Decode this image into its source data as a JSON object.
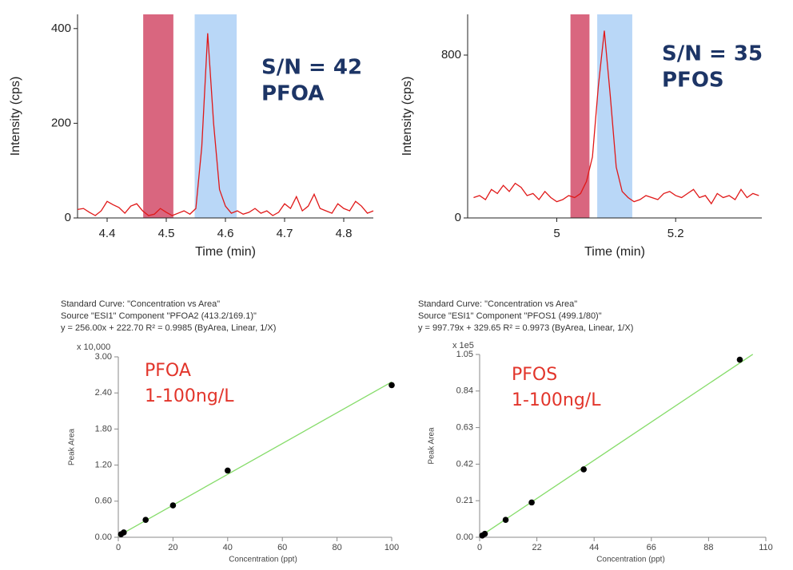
{
  "chart_data": [
    {
      "type": "line",
      "ylabel": "Intensity (cps)",
      "xlabel": "Time (min)",
      "annotations": [
        "S/N = 42",
        "PFOA"
      ],
      "x": [
        4.35,
        4.36,
        4.37,
        4.38,
        4.39,
        4.4,
        4.41,
        4.42,
        4.43,
        4.44,
        4.45,
        4.46,
        4.47,
        4.48,
        4.49,
        4.5,
        4.51,
        4.52,
        4.53,
        4.54,
        4.55,
        4.56,
        4.57,
        4.58,
        4.59,
        4.6,
        4.61,
        4.62,
        4.63,
        4.64,
        4.65,
        4.66,
        4.67,
        4.68,
        4.69,
        4.7,
        4.71,
        4.72,
        4.73,
        4.74,
        4.75,
        4.76,
        4.77,
        4.78,
        4.79,
        4.8,
        4.81,
        4.82,
        4.83,
        4.84,
        4.85
      ],
      "values": [
        18,
        20,
        12,
        5,
        15,
        35,
        28,
        22,
        10,
        25,
        30,
        15,
        5,
        8,
        20,
        12,
        5,
        10,
        15,
        8,
        20,
        150,
        390,
        200,
        60,
        25,
        10,
        15,
        8,
        12,
        20,
        10,
        15,
        5,
        12,
        30,
        20,
        45,
        15,
        25,
        50,
        20,
        15,
        10,
        30,
        20,
        15,
        35,
        25,
        10,
        15
      ],
      "color": "#e01818",
      "bands": [
        {
          "range": [
            4.461,
            4.512
          ],
          "color": "#d9667f"
        },
        {
          "range": [
            4.548,
            4.619
          ],
          "color": "#b9d7f7"
        }
      ],
      "xlim": [
        4.35,
        4.85
      ],
      "ylim": [
        0,
        430
      ],
      "xticks": [
        4.4,
        4.5,
        4.6,
        4.7,
        4.8
      ],
      "yticks": [
        0,
        200,
        400
      ]
    },
    {
      "type": "line",
      "ylabel": "Intensity (cps)",
      "xlabel": "Time (min)",
      "annotations": [
        "S/N = 35",
        "PFOS"
      ],
      "x": [
        4.86,
        4.87,
        4.88,
        4.89,
        4.9,
        4.91,
        4.92,
        4.93,
        4.94,
        4.95,
        4.96,
        4.97,
        4.98,
        4.99,
        5.0,
        5.01,
        5.02,
        5.03,
        5.04,
        5.05,
        5.06,
        5.07,
        5.08,
        5.09,
        5.1,
        5.11,
        5.12,
        5.13,
        5.14,
        5.15,
        5.16,
        5.17,
        5.18,
        5.19,
        5.2,
        5.21,
        5.22,
        5.23,
        5.24,
        5.25,
        5.26,
        5.27,
        5.28,
        5.29,
        5.3,
        5.31,
        5.32,
        5.33,
        5.34
      ],
      "values": [
        100,
        110,
        90,
        140,
        120,
        160,
        130,
        170,
        150,
        110,
        120,
        90,
        130,
        100,
        80,
        90,
        110,
        100,
        120,
        180,
        300,
        650,
        920,
        600,
        250,
        130,
        100,
        80,
        90,
        110,
        100,
        90,
        120,
        130,
        110,
        100,
        120,
        140,
        100,
        110,
        70,
        120,
        100,
        110,
        90,
        140,
        100,
        120,
        110
      ],
      "color": "#e01818",
      "bands": [
        {
          "range": [
            5.023,
            5.055
          ],
          "color": "#d9667f"
        },
        {
          "range": [
            5.068,
            5.127
          ],
          "color": "#b9d7f7"
        }
      ],
      "xlim": [
        4.85,
        5.345
      ],
      "ylim": [
        0,
        1000
      ],
      "xticks": [
        5,
        5.2
      ],
      "yticks": [
        0,
        800
      ]
    },
    {
      "type": "scatter",
      "header": [
        "Standard Curve: \"Concentration vs Area\"",
        "Source \"ESI1\" Component \"PFOA2 (413.2/169.1)\"",
        "y = 256.00x + 222.70    R² = 0.9985  (ByArea, Linear, 1/X)"
      ],
      "multiplier": "x 10,000",
      "ylabel": "Peak Area",
      "xlabel": "Concentration (ppt)",
      "annotations": [
        "PFOA",
        "1-100ng/L"
      ],
      "x": [
        1,
        2,
        10,
        20,
        40,
        100
      ],
      "values": [
        0.05,
        0.08,
        0.29,
        0.53,
        1.11,
        2.53
      ],
      "color": "#000000",
      "fit": {
        "x": [
          0,
          100
        ],
        "values": [
          0.022,
          2.583
        ],
        "color": "#86dc6a"
      },
      "xlim": [
        0,
        100
      ],
      "ylim": [
        0,
        3
      ],
      "xticks": [
        0,
        20,
        40,
        60,
        80,
        100
      ],
      "yticks": [
        {
          "value": 0,
          "label": "0.00"
        },
        {
          "value": 0.6,
          "label": "0.60"
        },
        {
          "value": 1.2,
          "label": "1.20"
        },
        {
          "value": 1.8,
          "label": "1.80"
        },
        {
          "value": 2.4,
          "label": "2.40"
        },
        {
          "value": 3,
          "label": "3.00"
        }
      ]
    },
    {
      "type": "scatter",
      "header": [
        "Standard Curve: \"Concentration vs Area\"",
        "Source \"ESI1\" Component \"PFOS1 (499.1/80)\"",
        "y = 997.79x + 329.65    R² = 0.9973  (ByArea, Linear, 1/X)"
      ],
      "multiplier": "x 1e5",
      "ylabel": "Peak Area",
      "xlabel": "Concentration (ppt)",
      "annotations": [
        "PFOS",
        "1-100ng/L"
      ],
      "x": [
        1,
        2,
        10,
        20,
        40,
        100
      ],
      "values": [
        0.01,
        0.02,
        0.1,
        0.2,
        0.39,
        1.02
      ],
      "color": "#000000",
      "fit": {
        "x": [
          0,
          105
        ],
        "values": [
          0.0033,
          1.051
        ],
        "color": "#86dc6a"
      },
      "xlim": [
        0,
        110
      ],
      "ylim": [
        0,
        1.05
      ],
      "xticks": [
        0,
        22,
        44,
        66,
        88,
        110
      ],
      "yticks": [
        {
          "value": 0,
          "label": "0.00"
        },
        {
          "value": 0.21,
          "label": "0.21"
        },
        {
          "value": 0.42,
          "label": "0.42"
        },
        {
          "value": 0.63,
          "label": "0.63"
        },
        {
          "value": 0.84,
          "label": "0.84"
        },
        {
          "value": 1.05,
          "label": "1.05"
        }
      ]
    }
  ]
}
